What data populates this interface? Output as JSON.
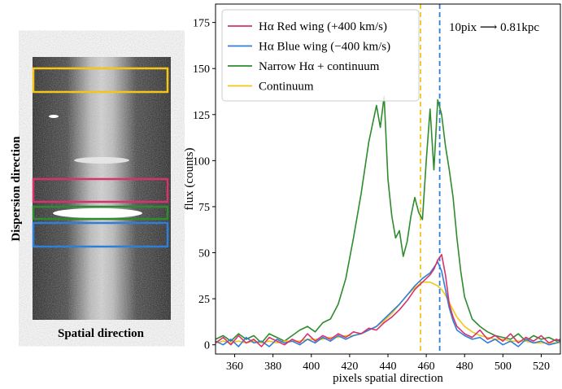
{
  "spectrum_image": {
    "ylabel": "Dispersion direction",
    "xlabel": "Spatial direction",
    "regions": [
      {
        "name": "continuum",
        "color": "#f5c518"
      },
      {
        "name": "red-wing",
        "color": "#d6336c"
      },
      {
        "name": "narrow",
        "color": "#2e8b2e"
      },
      {
        "name": "blue-wing",
        "color": "#2f7fd8"
      }
    ]
  },
  "chart_data": {
    "type": "line",
    "xlabel": "pixels spatial direction",
    "ylabel": "flux (counts)",
    "xlim": [
      350,
      530
    ],
    "ylim": [
      -5,
      185
    ],
    "xticks": [
      360,
      380,
      400,
      420,
      440,
      460,
      480,
      500,
      520
    ],
    "yticks": [
      0,
      25,
      50,
      75,
      100,
      125,
      150,
      175
    ],
    "legend_position": "top-left",
    "annotation": "10pix ⟶ 0.81kpc",
    "vlines": [
      {
        "x": 457,
        "color": "#f5c518",
        "style": "dashed"
      },
      {
        "x": 467,
        "color": "#2f7fd8",
        "style": "dashed"
      }
    ],
    "series": [
      {
        "name": "Hα Red wing (+400 km/s)",
        "color": "#d6336c",
        "x": [
          350,
          354,
          358,
          362,
          366,
          370,
          374,
          378,
          382,
          386,
          390,
          394,
          398,
          402,
          406,
          410,
          414,
          418,
          422,
          426,
          430,
          434,
          438,
          442,
          446,
          450,
          454,
          458,
          462,
          464,
          466,
          468,
          470,
          472,
          474,
          476,
          480,
          484,
          488,
          492,
          496,
          500,
          504,
          508,
          512,
          516,
          520,
          524,
          528,
          530
        ],
        "y": [
          1,
          4,
          0,
          5,
          1,
          3,
          -1,
          4,
          2,
          0,
          3,
          1,
          6,
          2,
          5,
          3,
          6,
          4,
          7,
          6,
          9,
          8,
          12,
          15,
          19,
          24,
          30,
          34,
          38,
          41,
          46,
          49,
          38,
          22,
          15,
          10,
          6,
          4,
          8,
          3,
          5,
          2,
          6,
          1,
          4,
          2,
          5,
          1,
          3,
          2
        ]
      },
      {
        "name": "Hα Blue wing (−400 km/s)",
        "color": "#2f7fd8",
        "x": [
          350,
          354,
          358,
          362,
          366,
          370,
          374,
          378,
          382,
          386,
          390,
          394,
          398,
          402,
          406,
          410,
          414,
          418,
          422,
          426,
          430,
          434,
          438,
          442,
          446,
          450,
          454,
          458,
          462,
          464,
          466,
          468,
          470,
          472,
          474,
          476,
          480,
          484,
          488,
          492,
          496,
          500,
          504,
          508,
          512,
          516,
          520,
          524,
          528,
          530
        ],
        "y": [
          2,
          0,
          3,
          -1,
          4,
          1,
          2,
          -1,
          3,
          1,
          2,
          0,
          3,
          1,
          4,
          2,
          5,
          3,
          5,
          6,
          8,
          10,
          14,
          18,
          22,
          27,
          32,
          36,
          39,
          42,
          45,
          40,
          30,
          20,
          13,
          8,
          5,
          3,
          4,
          1,
          3,
          0,
          2,
          -1,
          3,
          1,
          2,
          0,
          1,
          2
        ]
      },
      {
        "name": "Narrow Hα + continuum",
        "color": "#2e8b2e",
        "x": [
          350,
          354,
          358,
          362,
          366,
          370,
          374,
          378,
          382,
          386,
          390,
          394,
          398,
          402,
          406,
          410,
          414,
          418,
          422,
          426,
          430,
          434,
          436,
          438,
          440,
          442,
          444,
          446,
          448,
          450,
          452,
          454,
          456,
          458,
          460,
          462,
          464,
          466,
          468,
          470,
          472,
          474,
          476,
          478,
          480,
          484,
          488,
          492,
          496,
          500,
          504,
          508,
          512,
          516,
          520,
          524,
          528,
          530
        ],
        "y": [
          3,
          5,
          2,
          6,
          3,
          5,
          1,
          6,
          4,
          2,
          5,
          8,
          10,
          7,
          12,
          14,
          22,
          36,
          58,
          82,
          110,
          130,
          118,
          135,
          90,
          70,
          58,
          62,
          48,
          56,
          70,
          80,
          72,
          68,
          100,
          128,
          95,
          133,
          125,
          108,
          95,
          80,
          58,
          40,
          26,
          14,
          10,
          7,
          5,
          4,
          3,
          6,
          2,
          5,
          3,
          4,
          2,
          3
        ]
      },
      {
        "name": "Continuum",
        "color": "#f5c518",
        "x": [
          350,
          354,
          358,
          362,
          366,
          370,
          374,
          378,
          382,
          386,
          390,
          394,
          398,
          402,
          406,
          410,
          414,
          418,
          422,
          426,
          430,
          434,
          438,
          442,
          446,
          450,
          454,
          458,
          462,
          464,
          466,
          468,
          470,
          472,
          474,
          476,
          480,
          484,
          488,
          492,
          496,
          500,
          504,
          508,
          512,
          516,
          520,
          524,
          528,
          530
        ],
        "y": [
          1,
          2,
          1,
          2,
          1,
          2,
          1,
          2,
          1,
          2,
          2,
          2,
          3,
          3,
          3,
          4,
          4,
          5,
          5,
          6,
          8,
          10,
          13,
          17,
          22,
          27,
          31,
          34,
          34,
          33,
          32,
          30,
          27,
          23,
          19,
          15,
          10,
          7,
          5,
          4,
          3,
          3,
          2,
          2,
          2,
          1,
          1,
          1,
          1,
          1
        ]
      }
    ]
  }
}
